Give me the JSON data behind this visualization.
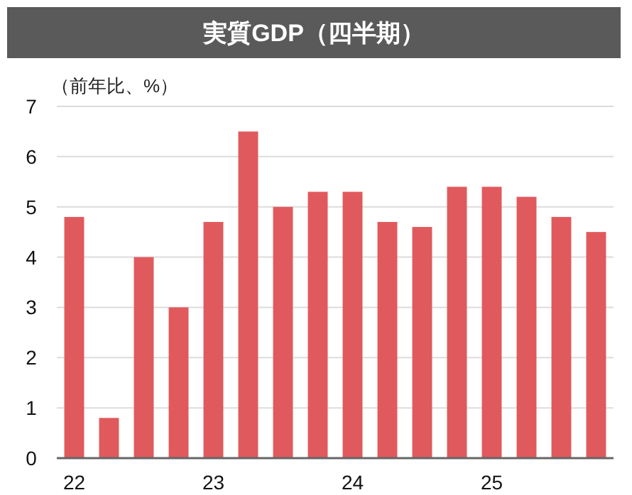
{
  "chart_data": {
    "type": "bar",
    "title": "実質GDP（四半期）",
    "ylabel": "（前年比、%）",
    "categories": [
      "22",
      null,
      null,
      null,
      "23",
      null,
      null,
      null,
      "24",
      null,
      null,
      null,
      "25",
      null,
      null,
      null
    ],
    "values": [
      4.8,
      0.8,
      4.0,
      3.0,
      4.7,
      6.5,
      5.0,
      5.3,
      5.3,
      4.7,
      4.6,
      5.4,
      5.4,
      5.2,
      4.8,
      4.5
    ],
    "color": "#e05a5d",
    "ylim": [
      0,
      7
    ],
    "yticks": [
      0,
      1,
      2,
      3,
      4,
      5,
      6,
      7
    ],
    "grid": "y"
  }
}
